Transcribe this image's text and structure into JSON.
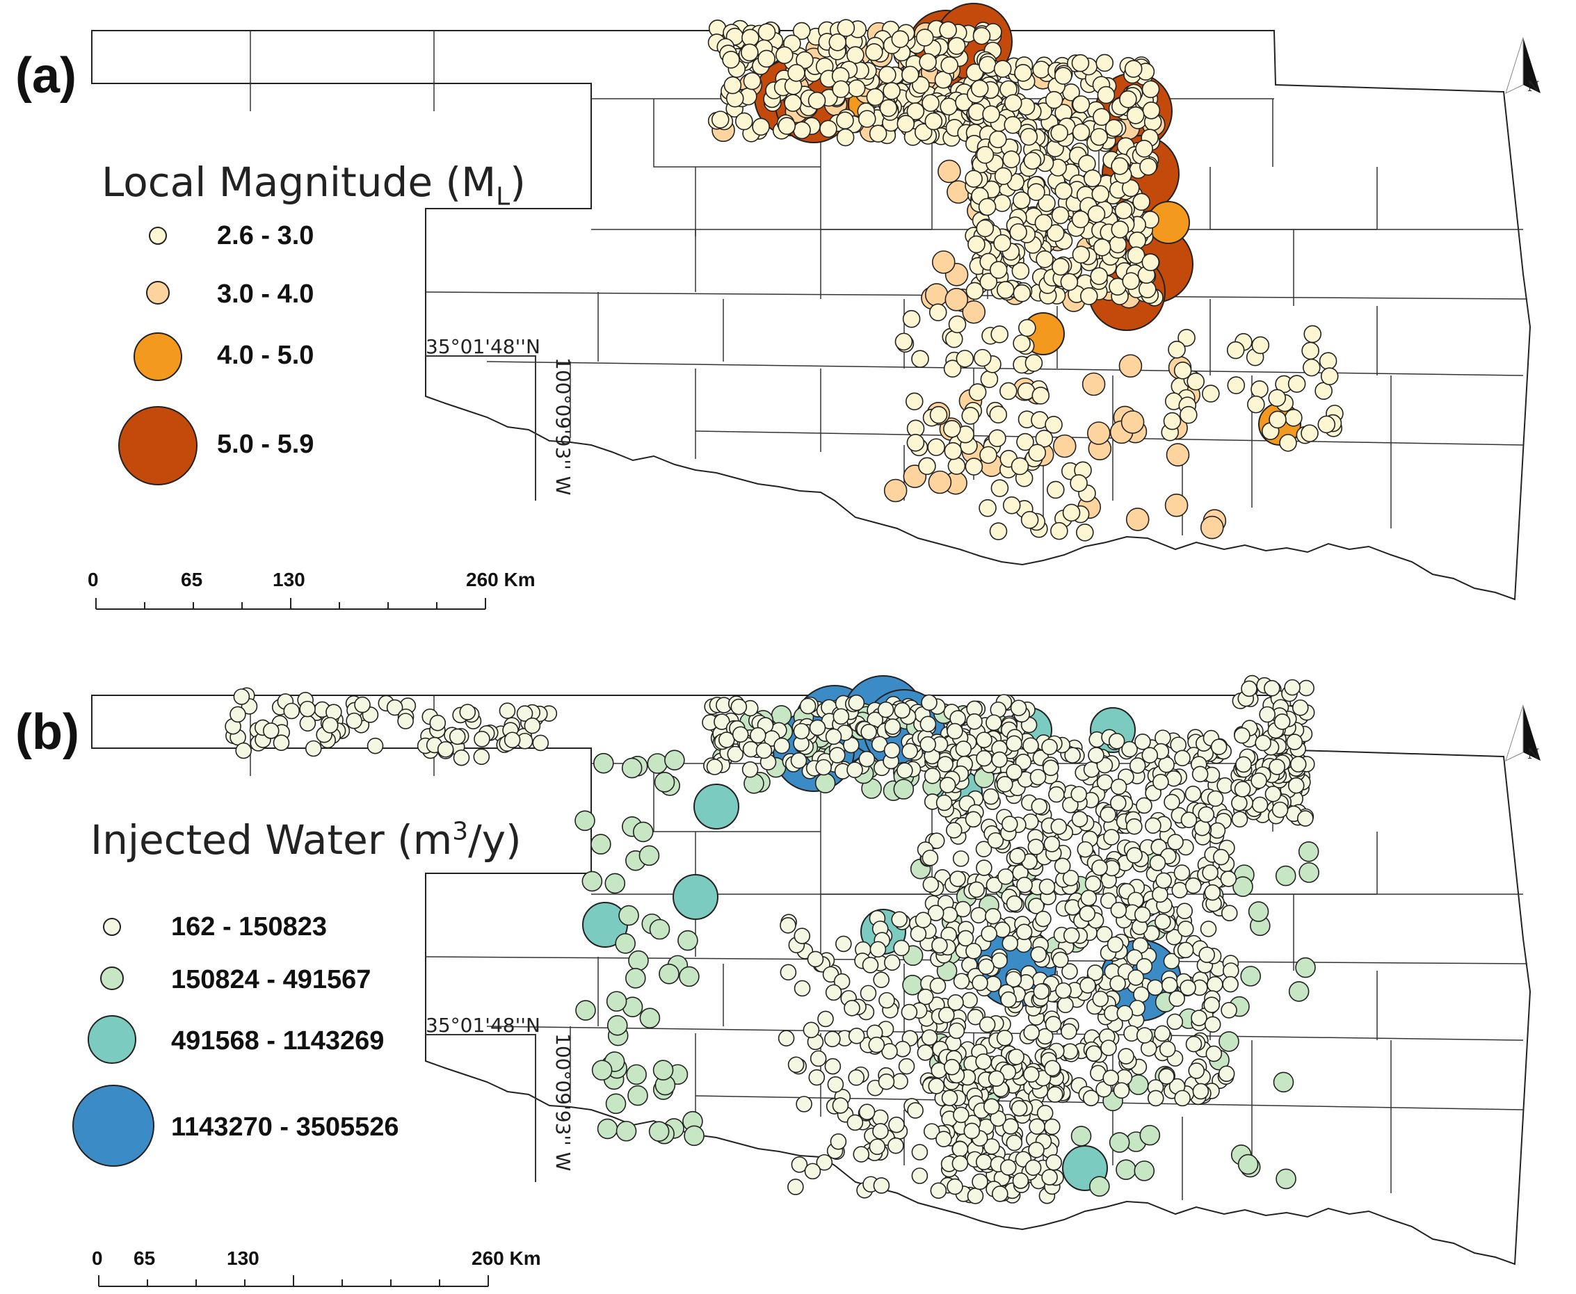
{
  "colors": {
    "outline": "#1a1a1a",
    "mag_small": "#fdf6d3",
    "mag_medium": "#fdd49e",
    "mag_large": "#f39a1e",
    "mag_xlarge": "#c34a0b",
    "inj_small": "#f4f7e1",
    "inj_medium": "#c7e6c3",
    "inj_large": "#7ccbc0",
    "inj_xlarge": "#3b8bc7"
  },
  "panel_a": {
    "label": "(a)",
    "legend_title_main": "Local Magnitude (M",
    "legend_title_sub": "L",
    "legend_title_end": ")",
    "legend_items": [
      {
        "label": "2.6 - 3.0",
        "color": "#fdf6d3"
      },
      {
        "label": "3.0 - 4.0",
        "color": "#fdd49e"
      },
      {
        "label": "4.0 - 5.0",
        "color": "#f39a1e"
      },
      {
        "label": "5.0 - 5.9",
        "color": "#c34a0b"
      }
    ],
    "lat_label": "35°01'48''N",
    "lon_label": "100°09'93'' W",
    "scale_labels": [
      "0",
      "65",
      "130",
      "260 Km"
    ],
    "north_label": "N"
  },
  "panel_b": {
    "label": "(b)",
    "legend_title_main": "Injected Water  (m",
    "legend_title_sup": "3",
    "legend_title_end": "/y)",
    "legend_items": [
      {
        "label": "162 - 150823",
        "color": "#f4f7e1"
      },
      {
        "label": "150824 - 491567",
        "color": "#c7e6c3"
      },
      {
        "label": "491568 - 1143269",
        "color": "#7ccbc0"
      },
      {
        "label": "1143270 - 3505526",
        "color": "#3b8bc7"
      }
    ],
    "lat_label": "35°01'48''N",
    "lon_label": "100°09'93'' W",
    "scale_labels": [
      "0",
      "65",
      "130",
      "260 Km"
    ],
    "north_label": "N"
  }
}
